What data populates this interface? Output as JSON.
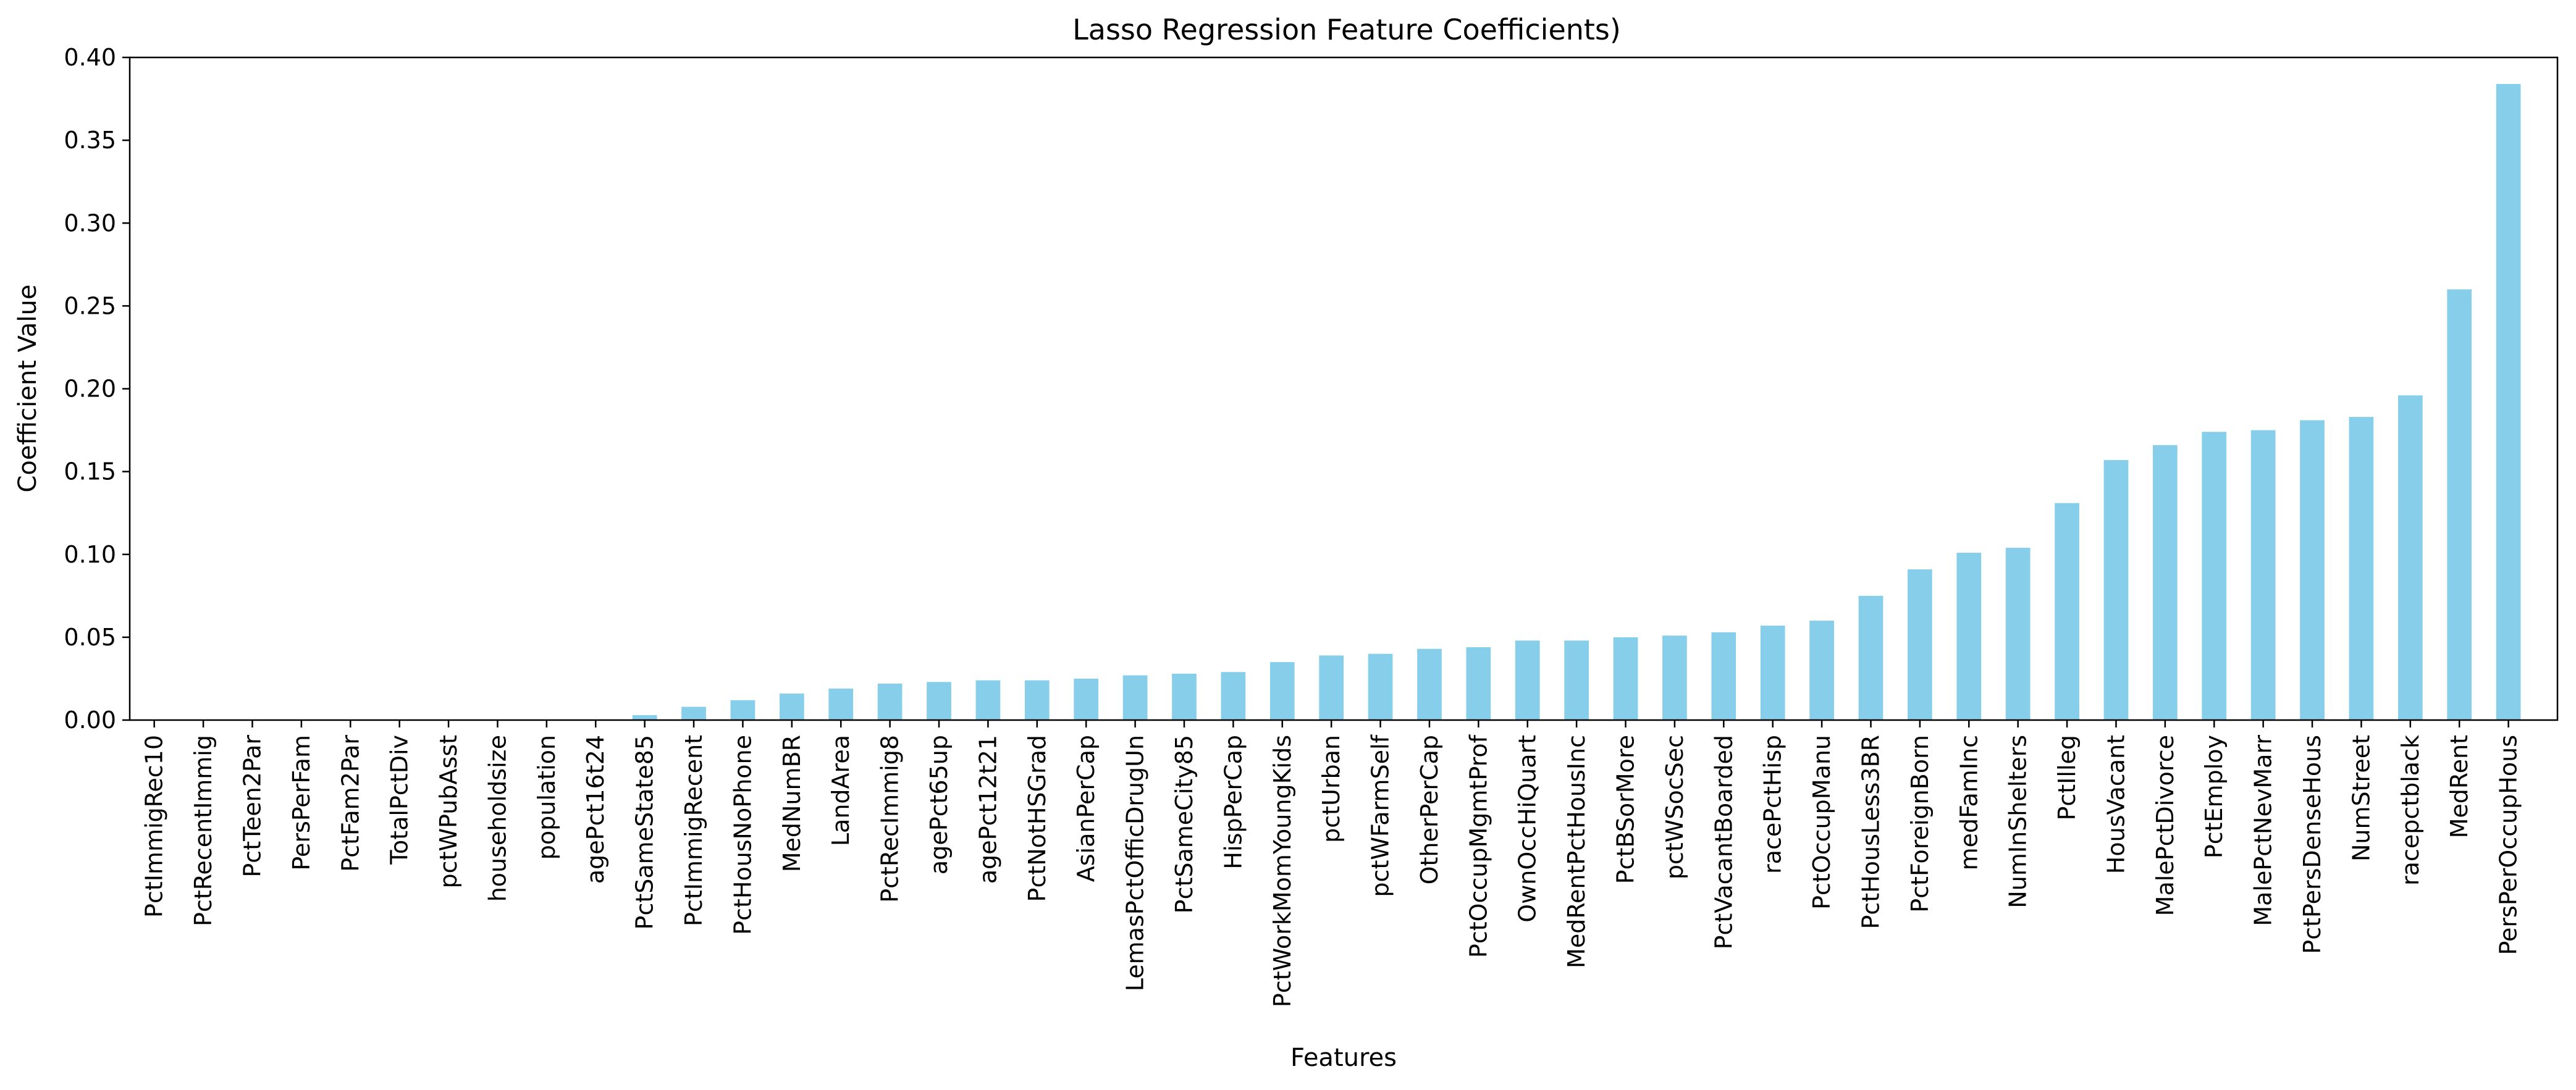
{
  "chart_data": {
    "type": "bar",
    "title": "Lasso Regression Feature Coefficients)",
    "xlabel": "Features",
    "ylabel": "Coefficient Value",
    "ylim": [
      0,
      0.4
    ],
    "yticks": [
      "0.00",
      "0.05",
      "0.10",
      "0.15",
      "0.20",
      "0.25",
      "0.30",
      "0.35",
      "0.40"
    ],
    "grid": false,
    "legend": "none",
    "bar_color": "#87ceeb",
    "categories": [
      "PctImmigRec10",
      "PctRecentImmig",
      "PctTeen2Par",
      "PersPerFam",
      "PctFam2Par",
      "TotalPctDiv",
      "pctWPubAsst",
      "householdsize",
      "population",
      "agePct16t24",
      "PctSameState85",
      "PctImmigRecent",
      "PctHousNoPhone",
      "MedNumBR",
      "LandArea",
      "PctRecImmig8",
      "agePct65up",
      "agePct12t21",
      "PctNotHSGrad",
      "AsianPerCap",
      "LemasPctOfficDrugUn",
      "PctSameCity85",
      "HispPerCap",
      "PctWorkMomYoungKids",
      "pctUrban",
      "pctWFarmSelf",
      "OtherPerCap",
      "PctOccupMgmtProf",
      "OwnOccHiQuart",
      "MedRentPctHousInc",
      "PctBSorMore",
      "pctWSocSec",
      "PctVacantBoarded",
      "racePctHisp",
      "PctOccupManu",
      "PctHousLess3BR",
      "PctForeignBorn",
      "medFamInc",
      "NumInShelters",
      "PctIlleg",
      "HousVacant",
      "MalePctDivorce",
      "PctEmploy",
      "MalePctNevMarr",
      "PctPersDenseHous",
      "NumStreet",
      "racepctblack",
      "MedRent",
      "PersPerOccupHous"
    ],
    "values": [
      0.0,
      0.0,
      0.0,
      0.0,
      0.0,
      0.0,
      0.0,
      0.0,
      0.0,
      0.0,
      0.003,
      0.008,
      0.012,
      0.016,
      0.019,
      0.022,
      0.023,
      0.024,
      0.024,
      0.025,
      0.027,
      0.028,
      0.029,
      0.035,
      0.039,
      0.04,
      0.043,
      0.044,
      0.048,
      0.048,
      0.05,
      0.051,
      0.053,
      0.057,
      0.06,
      0.075,
      0.091,
      0.101,
      0.104,
      0.131,
      0.157,
      0.166,
      0.174,
      0.175,
      0.181,
      0.183,
      0.196,
      0.26,
      0.384
    ]
  }
}
